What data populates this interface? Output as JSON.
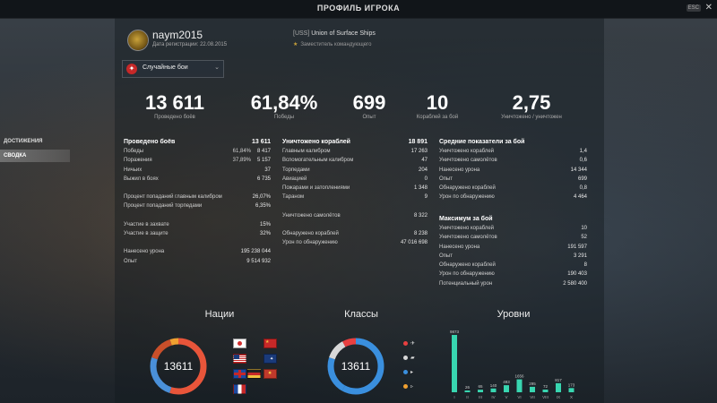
{
  "window": {
    "title": "ПРОФИЛЬ ИГРОКА",
    "esc_label": "ESC",
    "close_glyph": "✕"
  },
  "player": {
    "name": "naym2015",
    "reg_date": "Дата регистрации: 22.08.2015"
  },
  "clan": {
    "tag": "[USS]",
    "name": "Union of Surface Ships",
    "role": "Заместитель командующего"
  },
  "mode": {
    "label": "Случайные бои",
    "arrow": "⌄"
  },
  "summary": [
    {
      "value": "13 611",
      "label": "Проведено боёв"
    },
    {
      "value": "61,84%",
      "label": "Победы"
    },
    {
      "value": "699",
      "label": "Опыт"
    },
    {
      "value": "10",
      "label": "Кораблей за бой"
    },
    {
      "value": "2,75",
      "label": "Уничтожено / уничтожен"
    }
  ],
  "sidebar": [
    {
      "label": "ДОСТИЖЕНИЯ"
    },
    {
      "label": "СВОДКА"
    }
  ],
  "battles": {
    "title": "Проведено боёв",
    "total": "13 611",
    "rows": [
      {
        "label": "Победы",
        "pct": "61,84%",
        "value": "8 417"
      },
      {
        "label": "Поражения",
        "pct": "37,89%",
        "value": "5 157"
      },
      {
        "label": "Ничьих",
        "pct": "",
        "value": "37"
      },
      {
        "label": "Выжил в боях",
        "pct": "",
        "value": "6 735"
      }
    ],
    "rows2": [
      {
        "label": "Процент попаданий главным калибром",
        "value": "26,07%"
      },
      {
        "label": "Процент попаданий торпедами",
        "value": "6,35%"
      }
    ],
    "rows3": [
      {
        "label": "Участие в захвате",
        "value": "15%"
      },
      {
        "label": "Участие в защите",
        "value": "32%"
      }
    ],
    "rows4": [
      {
        "label": "Нанесено урона",
        "value": "195 238 044"
      },
      {
        "label": "Опыт",
        "value": "9 514 932"
      }
    ]
  },
  "destroyed": {
    "title": "Уничтожено кораблей",
    "total": "18 891",
    "rows": [
      {
        "label": "Главным калибром",
        "value": "17 263"
      },
      {
        "label": "Вспомогательным калибром",
        "value": "47"
      },
      {
        "label": "Торпедами",
        "value": "204"
      },
      {
        "label": "Авиацией",
        "value": "0"
      },
      {
        "label": "Пожарами и затоплениями",
        "value": "1 348"
      },
      {
        "label": "Тараном",
        "value": "9"
      }
    ],
    "planes": {
      "label": "Уничтожено самолётов",
      "value": "8 322"
    },
    "spotted": [
      {
        "label": "Обнаружено кораблей",
        "value": "8 238"
      },
      {
        "label": "Урон по обнаружению",
        "value": "47 016 698"
      }
    ]
  },
  "average": {
    "title": "Средние показатели за бой",
    "rows": [
      {
        "label": "Уничтожено кораблей",
        "value": "1,4"
      },
      {
        "label": "Уничтожено самолётов",
        "value": "0,6"
      },
      {
        "label": "Нанесено урона",
        "value": "14 344"
      },
      {
        "label": "Опыт",
        "value": "699"
      },
      {
        "label": "Обнаружено кораблей",
        "value": "0,8"
      },
      {
        "label": "Урон по обнаружению",
        "value": "4 464"
      }
    ]
  },
  "maximum": {
    "title": "Максимум за бой",
    "rows": [
      {
        "label": "Уничтожено кораблей",
        "value": "10"
      },
      {
        "label": "Уничтожено самолётов",
        "value": "52"
      },
      {
        "label": "Нанесено урона",
        "value": "191 597"
      },
      {
        "label": "Опыт",
        "value": "3 291"
      },
      {
        "label": "Обнаружено кораблей",
        "value": "8"
      },
      {
        "label": "Урон по обнаружению",
        "value": "190 403"
      },
      {
        "label": "Потенциальный урон",
        "value": "2 580 400"
      }
    ]
  },
  "nations": {
    "title": "Нации",
    "center": "13611",
    "segments": [
      {
        "fraction": 0.55,
        "color": "#e8553a"
      },
      {
        "fraction": 0.25,
        "color": "#4a90d9"
      },
      {
        "fraction": 0.15,
        "color": "#c94f2a"
      },
      {
        "fraction": 0.05,
        "color": "#f0a030"
      }
    ],
    "flags": [
      "japan-flag",
      "usa-flag",
      "ussr-flag",
      "germany-flag",
      "uk-flag",
      "pan-asia-flag",
      "commonwealth-flag",
      "france-flag"
    ]
  },
  "classes": {
    "title": "Классы",
    "center": "13611",
    "segments": [
      {
        "fraction": 0.58,
        "color": "#3a8fde"
      },
      {
        "fraction": 0.22,
        "color": "#3a8fde"
      },
      {
        "fraction": 0.12,
        "color": "#d8d8d8"
      },
      {
        "fraction": 0.08,
        "color": "#e84040"
      }
    ],
    "items": [
      {
        "icon": "aircraft-carrier-icon",
        "color": "#e84040"
      },
      {
        "icon": "battleship-icon",
        "color": "#d8d8d8"
      },
      {
        "icon": "cruiser-icon",
        "color": "#3a8fde"
      },
      {
        "icon": "destroyer-icon",
        "color": "#f0a030"
      }
    ]
  },
  "chart_data": {
    "type": "bar",
    "title": "Уровни",
    "categories": [
      "I",
      "II",
      "III",
      "IV",
      "V",
      "VI",
      "VII",
      "VIII",
      "IX",
      "X"
    ],
    "values": [
      9873,
      26,
      65,
      140,
      493,
      1656,
      295,
      72,
      817,
      173
    ],
    "value_labels": [
      "9873",
      "26",
      "65",
      "140",
      "493",
      "1656",
      "295",
      "72",
      "817",
      "173"
    ]
  }
}
